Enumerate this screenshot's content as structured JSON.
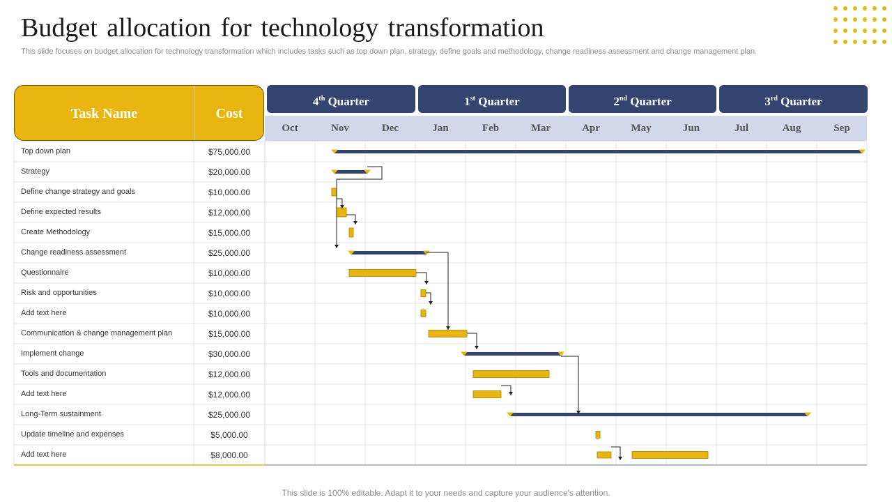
{
  "title": "Budget allocation  for technology  transformation",
  "subtitle": "This slide focuses on budget allocation for technology transformation which includes tasks such as top down plan, strategy, define goals and methodology, change readiness assessment and change management plan.",
  "headers": {
    "task": "Task Name",
    "cost": "Cost"
  },
  "quarters": [
    {
      "num": "4",
      "sup": "th",
      "label": "Quarter"
    },
    {
      "num": "1",
      "sup": "st",
      "label": "Quarter"
    },
    {
      "num": "2",
      "sup": "nd",
      "label": "Quarter"
    },
    {
      "num": "3",
      "sup": "rd",
      "label": "Quarter"
    }
  ],
  "months": [
    "Oct",
    "Nov",
    "Dec",
    "Jan",
    "Feb",
    "Mar",
    "Apr",
    "May",
    "Jun",
    "Jul",
    "Aug",
    "Sep"
  ],
  "tasks": [
    {
      "name": "Top down plan",
      "cost": "$75,000.00"
    },
    {
      "name": "Strategy",
      "cost": "$20,000.00"
    },
    {
      "name": "Define change strategy and goals",
      "cost": "$10,000.00"
    },
    {
      "name": "Define expected results",
      "cost": "$12,000.00"
    },
    {
      "name": "Create Methodology",
      "cost": "$15,000.00"
    },
    {
      "name": "Change readiness assessment",
      "cost": "$25,000.00"
    },
    {
      "name": "Questionnaire",
      "cost": "$10,000.00"
    },
    {
      "name": "Risk and opportunities",
      "cost": "$10,000.00"
    },
    {
      "name": "Add text here",
      "cost": "$10,000.00"
    },
    {
      "name": "Communication  & change management plan",
      "cost": "$15,000.00"
    },
    {
      "name": "Implement  change",
      "cost": "$30,000.00"
    },
    {
      "name": "Tools and documentation",
      "cost": "$12,000.00"
    },
    {
      "name": "Add text here",
      "cost": "$12,000.00"
    },
    {
      "name": "Long-Term sustainment",
      "cost": "$25,000.00"
    },
    {
      "name": "Update timeline and expenses",
      "cost": "$5,000.00"
    },
    {
      "name": "Add text here",
      "cost": "$8,000.00"
    }
  ],
  "colors": {
    "accent": "#e8b511",
    "navy": "#334470",
    "month_bg": "#d0d8ea"
  },
  "footer": "This slide is 100% editable. Adapt it to your needs and capture your audience's attention."
}
